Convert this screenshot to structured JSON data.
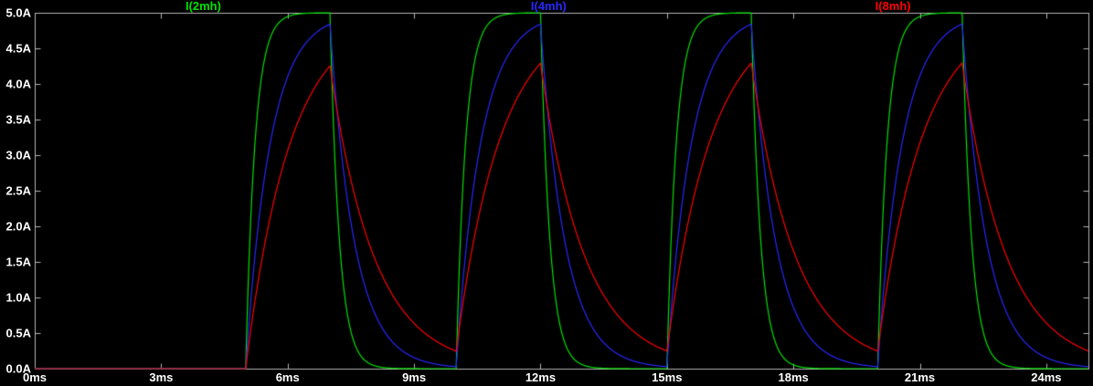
{
  "chart_data": {
    "type": "line",
    "title": "",
    "description": "Transient simulation waveform pane: inductor currents for 2mH, 4mH and 8mH inductors driven by a repeating voltage pulse; first-order RL exponential rise and decay.",
    "x_axis": {
      "unit": "ms",
      "min_ms": 0,
      "max_ms": 25,
      "tick_step_ms": 3,
      "tick_labels": [
        "0ms",
        "3ms",
        "6ms",
        "9ms",
        "12ms",
        "15ms",
        "18ms",
        "21ms",
        "24ms"
      ]
    },
    "y_axis": {
      "unit": "A",
      "min_A": 0,
      "max_A": 5,
      "tick_step_A": 0.5,
      "tick_labels": [
        "0.0A",
        "0.5A",
        "1.0A",
        "1.5A",
        "2.0A",
        "2.5A",
        "3.0A",
        "3.5A",
        "4.0A",
        "4.5A",
        "5.0A"
      ]
    },
    "grid": "off",
    "background_color": "#000000",
    "border_color": "#b4b4b4",
    "tick_text_color": "#ffffff",
    "stimulus": {
      "first_rise_ms": 5,
      "on_time_ms": 2,
      "period_ms": 5,
      "amplitude_A": 5,
      "rise_times_ms": [
        5,
        10,
        15,
        20
      ],
      "peak_times_ms": [
        7,
        12,
        17,
        22
      ]
    },
    "series": [
      {
        "name": "I(2mh)",
        "color": "#00e100",
        "inductance_mH": 2,
        "tau_ms": 0.22,
        "steady_peak_A": 5.0,
        "steady_valley_A": 0.0
      },
      {
        "name": "I(4mh)",
        "color": "#2828ff",
        "inductance_mH": 4,
        "tau_ms": 0.58,
        "steady_peak_A": 4.85,
        "steady_valley_A": 0.03
      },
      {
        "name": "I(8mh)",
        "color": "#ff0000",
        "inductance_mH": 8,
        "tau_ms": 1.05,
        "steady_peak_A": 4.3,
        "steady_valley_A": 0.25
      }
    ],
    "legend_position": "top",
    "legend_entries": [
      "I(2mh)",
      "I(4mh)",
      "I(8mh)"
    ]
  }
}
